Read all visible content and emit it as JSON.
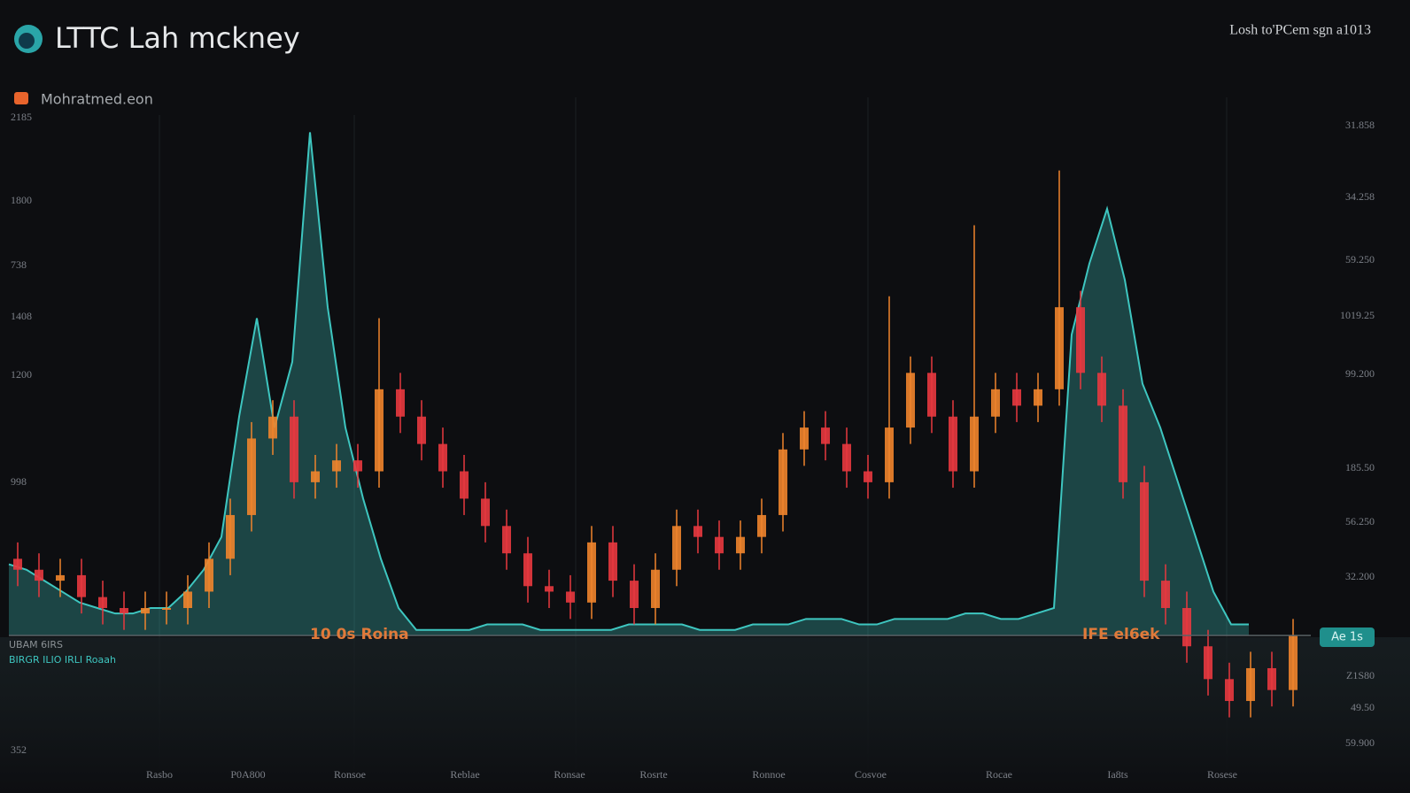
{
  "header": {
    "title": "LTTC Lah mckney",
    "status": "Losh to'PCem sgn a1013"
  },
  "legend": {
    "label": "Mohratmed.eon"
  },
  "left_labels": [
    "2185",
    "1800",
    "738",
    "1408",
    "1200",
    "998",
    "352"
  ],
  "right_labels": [
    "31.858",
    "34.258",
    "59.250",
    "1019.25",
    "99.200",
    "185.50",
    "56.250",
    "32.200",
    "Z1S80",
    "49.50",
    "59.900"
  ],
  "badge": "Ae 1s",
  "x_labels": [
    "Rasbo",
    "P0A800",
    "Ronsoe",
    "Reblae",
    "Ronsae",
    "Rosrte",
    "Ronnoe",
    "Cosvoe",
    "Rocae",
    "Ia8ts",
    "Rosese"
  ],
  "annotations": [
    "10 0s Roina",
    "IFE el6ek"
  ],
  "bottom_left": [
    "UBAM 6IRS",
    "BIRGR ILIO IRLI Roaah"
  ],
  "chart_data": {
    "type": "candlestick",
    "ylim": [
      -23,
      100
    ],
    "line_color": "#3ec6c0",
    "up_color": "#f0842c",
    "down_color": "#e8383f",
    "area": [
      13,
      12,
      10,
      8,
      6,
      5,
      4,
      4,
      5,
      5,
      8,
      12,
      18,
      40,
      58,
      38,
      50,
      92,
      60,
      38,
      25,
      14,
      5,
      1,
      1,
      1,
      1,
      2,
      2,
      2,
      1,
      1,
      1,
      1,
      1,
      2,
      2,
      2,
      2,
      1,
      1,
      1,
      2,
      2,
      2,
      3,
      3,
      3,
      2,
      2,
      3,
      3,
      3,
      3,
      4,
      4,
      3,
      3,
      4,
      5,
      55,
      68,
      78,
      65,
      46,
      38,
      28,
      18,
      8,
      2,
      2
    ],
    "open": [
      14,
      12,
      10,
      11,
      7,
      5,
      4,
      5,
      5,
      8,
      14,
      22,
      36,
      40,
      28,
      30,
      32,
      30,
      45,
      40,
      35,
      30,
      25,
      20,
      15,
      9,
      8,
      6,
      17,
      10,
      5,
      12,
      20,
      18,
      15,
      18,
      22,
      34,
      38,
      35,
      30,
      28,
      38,
      48,
      40,
      30,
      40,
      45,
      42,
      45,
      60,
      48,
      42,
      28,
      10,
      5,
      -2,
      -8,
      -12,
      -6,
      -10
    ],
    "close": [
      12,
      10,
      11,
      7,
      5,
      4,
      5,
      5,
      8,
      14,
      22,
      36,
      40,
      28,
      30,
      32,
      30,
      45,
      40,
      35,
      30,
      25,
      20,
      15,
      9,
      8,
      6,
      17,
      10,
      5,
      12,
      20,
      18,
      15,
      18,
      22,
      34,
      38,
      35,
      30,
      28,
      38,
      48,
      40,
      30,
      40,
      45,
      42,
      45,
      60,
      48,
      42,
      28,
      10,
      5,
      -2,
      -8,
      -12,
      -6,
      -10,
      0
    ],
    "high": [
      17,
      15,
      14,
      14,
      10,
      8,
      8,
      8,
      11,
      17,
      25,
      39,
      43,
      43,
      33,
      35,
      35,
      58,
      48,
      43,
      38,
      33,
      28,
      23,
      18,
      12,
      11,
      20,
      20,
      13,
      15,
      23,
      23,
      21,
      21,
      25,
      37,
      41,
      41,
      38,
      33,
      62,
      51,
      51,
      43,
      75,
      48,
      48,
      48,
      85,
      63,
      51,
      45,
      31,
      13,
      8,
      1,
      -5,
      -3,
      -3,
      3
    ],
    "low": [
      9,
      7,
      7,
      4,
      2,
      1,
      1,
      2,
      2,
      5,
      11,
      19,
      33,
      25,
      25,
      27,
      27,
      27,
      37,
      32,
      27,
      22,
      17,
      12,
      6,
      5,
      3,
      3,
      7,
      2,
      2,
      9,
      15,
      12,
      12,
      15,
      19,
      31,
      32,
      27,
      25,
      25,
      35,
      37,
      27,
      27,
      37,
      39,
      39,
      42,
      45,
      39,
      25,
      7,
      2,
      -5,
      -11,
      -15,
      -15,
      -13,
      -13
    ]
  }
}
